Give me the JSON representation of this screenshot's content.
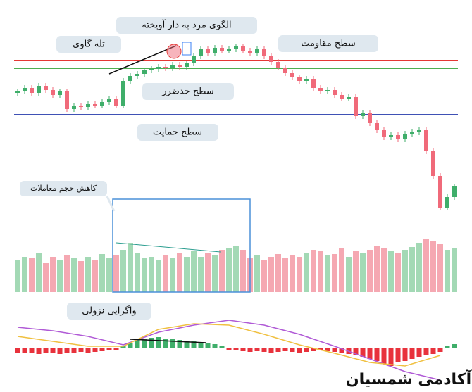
{
  "chart_data": {
    "type": "candlestick",
    "open": 188,
    "close": [
      190,
      195,
      188,
      198,
      192,
      185,
      190,
      165,
      170,
      168,
      172,
      170,
      175,
      180,
      170,
      205,
      212,
      215,
      220,
      222,
      225,
      223,
      228,
      225,
      230,
      240,
      250,
      245,
      252,
      248,
      250,
      254,
      248,
      245,
      250,
      240,
      232,
      224,
      216,
      210,
      205,
      208,
      195,
      190,
      192,
      185,
      180,
      182,
      155,
      160,
      145,
      135,
      125,
      128,
      122,
      130,
      132,
      135,
      105,
      70,
      25,
      40,
      55
    ],
    "ylim": [
      0,
      280
    ],
    "up_color": "#3fae6a",
    "down_color": "#f06a7a",
    "levels": [
      {
        "name": "سطح مقاومت",
        "value": 234,
        "color": "#e53935"
      },
      {
        "name": "سطح حدضرر",
        "value": 223,
        "color": "#4caf50"
      },
      {
        "name": "سطح حمایت",
        "value": 157,
        "color": "#3f51b5"
      }
    ],
    "annotations": {
      "hanging_man": "الگوی مرد به دار آویخته",
      "bull_trap": "تله گاوی",
      "volume_drop": "کاهش حجم معاملات",
      "divergence": "واگرایی نزولی"
    },
    "volume": [
      45,
      50,
      48,
      55,
      42,
      50,
      46,
      52,
      48,
      44,
      50,
      46,
      54,
      48,
      52,
      60,
      70,
      55,
      48,
      50,
      46,
      52,
      48,
      55,
      50,
      58,
      50,
      56,
      52,
      60,
      62,
      66,
      60,
      48,
      52,
      45,
      50,
      54,
      48,
      52,
      50,
      56,
      60,
      58,
      52,
      54,
      62,
      50,
      58,
      56,
      60,
      65,
      62,
      58,
      55,
      60,
      64,
      70,
      75,
      72,
      68,
      60,
      62
    ],
    "vlim": [
      0,
      80
    ],
    "volume_up_color": "#a3d9b5",
    "volume_down_color": "#f5a8b2",
    "macd": {
      "lim": [
        -50,
        50
      ],
      "histogram": [
        -6,
        -7,
        -6,
        -8,
        -7,
        -6,
        -8,
        -7,
        -6,
        -5,
        -6,
        -5,
        -4,
        -3,
        -2,
        4,
        8,
        12,
        14,
        15,
        16,
        14,
        13,
        12,
        11,
        10,
        9,
        8,
        6,
        3,
        -2,
        -3,
        -4,
        -5,
        -4,
        -5,
        -6,
        -5,
        -4,
        -5,
        -6,
        -5,
        -4,
        -3,
        -4,
        -5,
        -6,
        -8,
        -10,
        -12,
        -15,
        -18,
        -22,
        -25,
        -20,
        -18,
        -15,
        -12,
        -10,
        -8,
        -5,
        3,
        6
      ],
      "lines": [
        {
          "color": "#b05ad6",
          "x": [
            0,
            5,
            10,
            15,
            20,
            25,
            30,
            35,
            40,
            45,
            50,
            55,
            60
          ],
          "values": [
            30,
            25,
            17,
            5,
            23,
            33,
            40,
            33,
            20,
            3,
            -15,
            -33,
            -45
          ]
        },
        {
          "color": "#f0c040",
          "x": [
            0,
            5,
            10,
            15,
            20,
            25,
            30,
            35,
            40,
            45,
            50,
            55,
            60
          ],
          "values": [
            17,
            10,
            3,
            3,
            27,
            35,
            33,
            20,
            5,
            -7,
            -20,
            -25,
            -10
          ]
        }
      ]
    },
    "watermark": "آکادمی شمسیان"
  }
}
